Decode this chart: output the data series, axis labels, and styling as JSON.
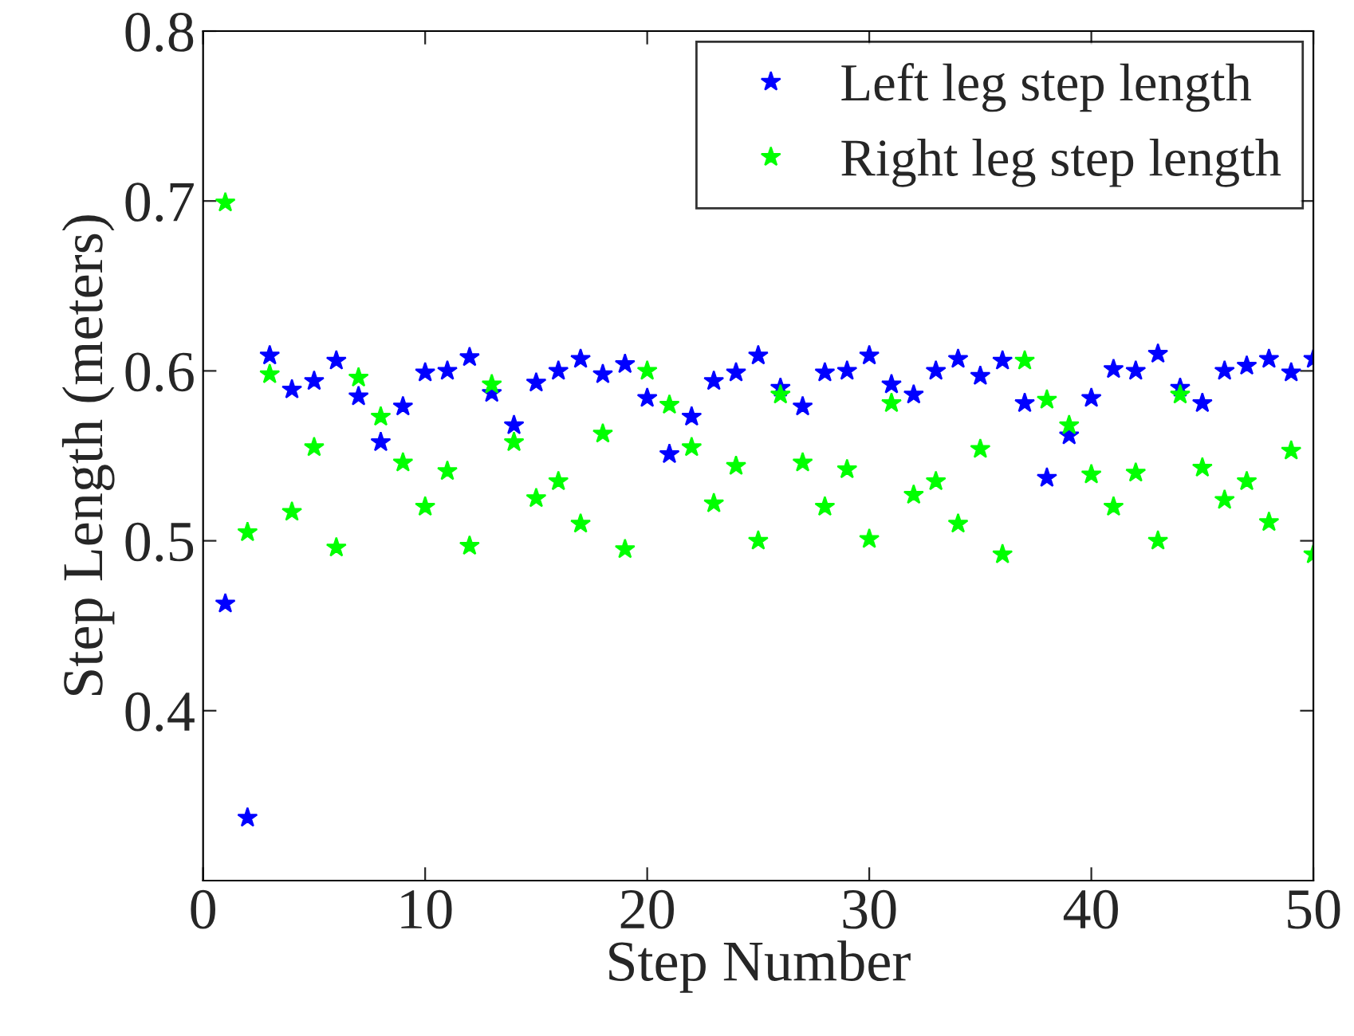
{
  "chart_data": {
    "type": "scatter",
    "xlabel": "Step Number",
    "ylabel": "Step Length (meters)",
    "xlim": [
      0,
      50
    ],
    "xticks": [
      0,
      10,
      20,
      30,
      40,
      50
    ],
    "ylim": [
      0.3,
      0.8
    ],
    "yticks": [
      0.4,
      0.5,
      0.6,
      0.7,
      0.8
    ],
    "grid": false,
    "legend": "top right",
    "marker": "star",
    "x": [
      1,
      2,
      3,
      4,
      5,
      6,
      7,
      8,
      9,
      10,
      11,
      12,
      13,
      14,
      15,
      16,
      17,
      18,
      19,
      20,
      21,
      22,
      23,
      24,
      25,
      26,
      27,
      28,
      29,
      30,
      31,
      32,
      33,
      34,
      35,
      36,
      37,
      38,
      39,
      40,
      41,
      42,
      43,
      44,
      45,
      46,
      47,
      48,
      49,
      50
    ],
    "series": [
      {
        "name": "Left leg step length",
        "color": "#0000ff",
        "values": [
          0.463,
          0.337,
          0.609,
          0.589,
          0.594,
          0.606,
          0.585,
          0.558,
          0.579,
          0.599,
          0.6,
          0.608,
          0.587,
          0.568,
          0.593,
          0.6,
          0.607,
          0.598,
          0.604,
          0.584,
          0.551,
          0.573,
          0.594,
          0.599,
          0.609,
          0.59,
          0.579,
          0.599,
          0.6,
          0.609,
          0.592,
          0.586,
          0.6,
          0.607,
          0.597,
          0.606,
          0.581,
          0.537,
          0.562,
          0.584,
          0.601,
          0.6,
          0.61,
          0.59,
          0.581,
          0.6,
          0.603,
          0.607,
          0.599,
          0.607
        ]
      },
      {
        "name": "Right leg step length",
        "color": "#00ff00",
        "values": [
          0.699,
          0.505,
          0.598,
          0.517,
          0.555,
          0.496,
          0.596,
          0.573,
          0.546,
          0.52,
          0.541,
          0.497,
          0.592,
          0.558,
          0.525,
          0.535,
          0.51,
          0.563,
          0.495,
          0.6,
          0.58,
          0.555,
          0.522,
          0.544,
          0.5,
          0.586,
          0.546,
          0.52,
          0.542,
          0.501,
          0.581,
          0.527,
          0.535,
          0.51,
          0.554,
          0.492,
          0.606,
          0.583,
          0.568,
          0.539,
          0.52,
          0.54,
          0.5,
          0.586,
          0.543,
          0.524,
          0.535,
          0.511,
          0.553,
          0.492
        ]
      }
    ]
  }
}
